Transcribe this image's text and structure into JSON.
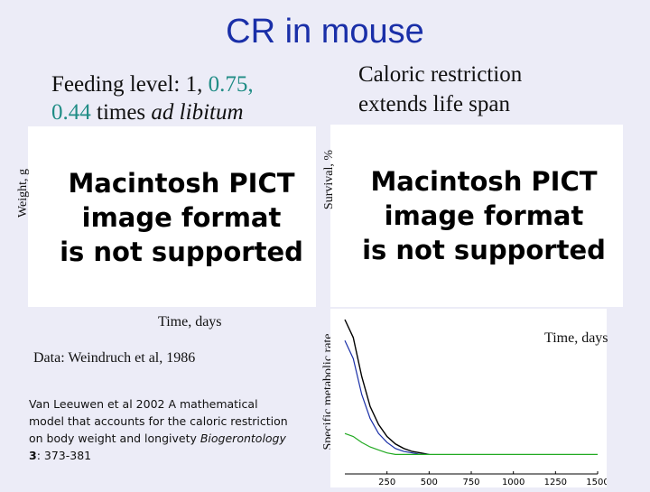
{
  "slide": {
    "title": "CR in mouse",
    "feeding_prefix": "Feeding level: 1, ",
    "feeding_v1": "0.75,",
    "feeding_v2": "0.44",
    "feeding_mid": " times ",
    "feeding_suffix": "ad libitum",
    "caloric_line1": "Caloric restriction",
    "caloric_line2": "extends life span",
    "pict_line1": "Macintosh PICT",
    "pict_line2": "image format",
    "pict_line3": "is not supported",
    "weight_label": "Weight, g",
    "survival_label": "Survival, %",
    "smr_label": "Specific metabolic rate",
    "time_left": "Time, days",
    "time_right": "Time, days",
    "data_credit": "Data: Weindruch et al, 1986",
    "citation_text": "Van Leeuwen et al 2002 A mathematical model that accounts for the caloric restriction on body weight and longivety ",
    "citation_journal": "Biogerontology",
    "citation_volume": " 3",
    "citation_pages": ": 373-381"
  },
  "chart_data": {
    "type": "line",
    "xlabel": "",
    "ylabel": "Specific metabolic rate",
    "xlim": [
      0,
      1500
    ],
    "x_ticks": [
      250,
      500,
      750,
      1000,
      1250,
      1500
    ],
    "series": [
      {
        "color": "#000000",
        "x": [
          0,
          50,
          100,
          150,
          200,
          250,
          300,
          350,
          400,
          450,
          500
        ],
        "y": [
          1.0,
          0.88,
          0.62,
          0.42,
          0.3,
          0.22,
          0.17,
          0.14,
          0.12,
          0.11,
          0.1
        ]
      },
      {
        "color": "#1a2fa8",
        "x": [
          0,
          50,
          100,
          150,
          200,
          250,
          300,
          350,
          400,
          450,
          500
        ],
        "y": [
          0.86,
          0.74,
          0.5,
          0.34,
          0.24,
          0.18,
          0.14,
          0.12,
          0.11,
          0.1,
          0.1
        ]
      },
      {
        "color": "#22aa22",
        "x": [
          0,
          50,
          100,
          150,
          200,
          250,
          300,
          350,
          400,
          500,
          750,
          1000,
          1250,
          1500
        ],
        "y": [
          0.24,
          0.22,
          0.18,
          0.15,
          0.13,
          0.11,
          0.1,
          0.1,
          0.1,
          0.1,
          0.1,
          0.1,
          0.1,
          0.1
        ]
      }
    ]
  }
}
